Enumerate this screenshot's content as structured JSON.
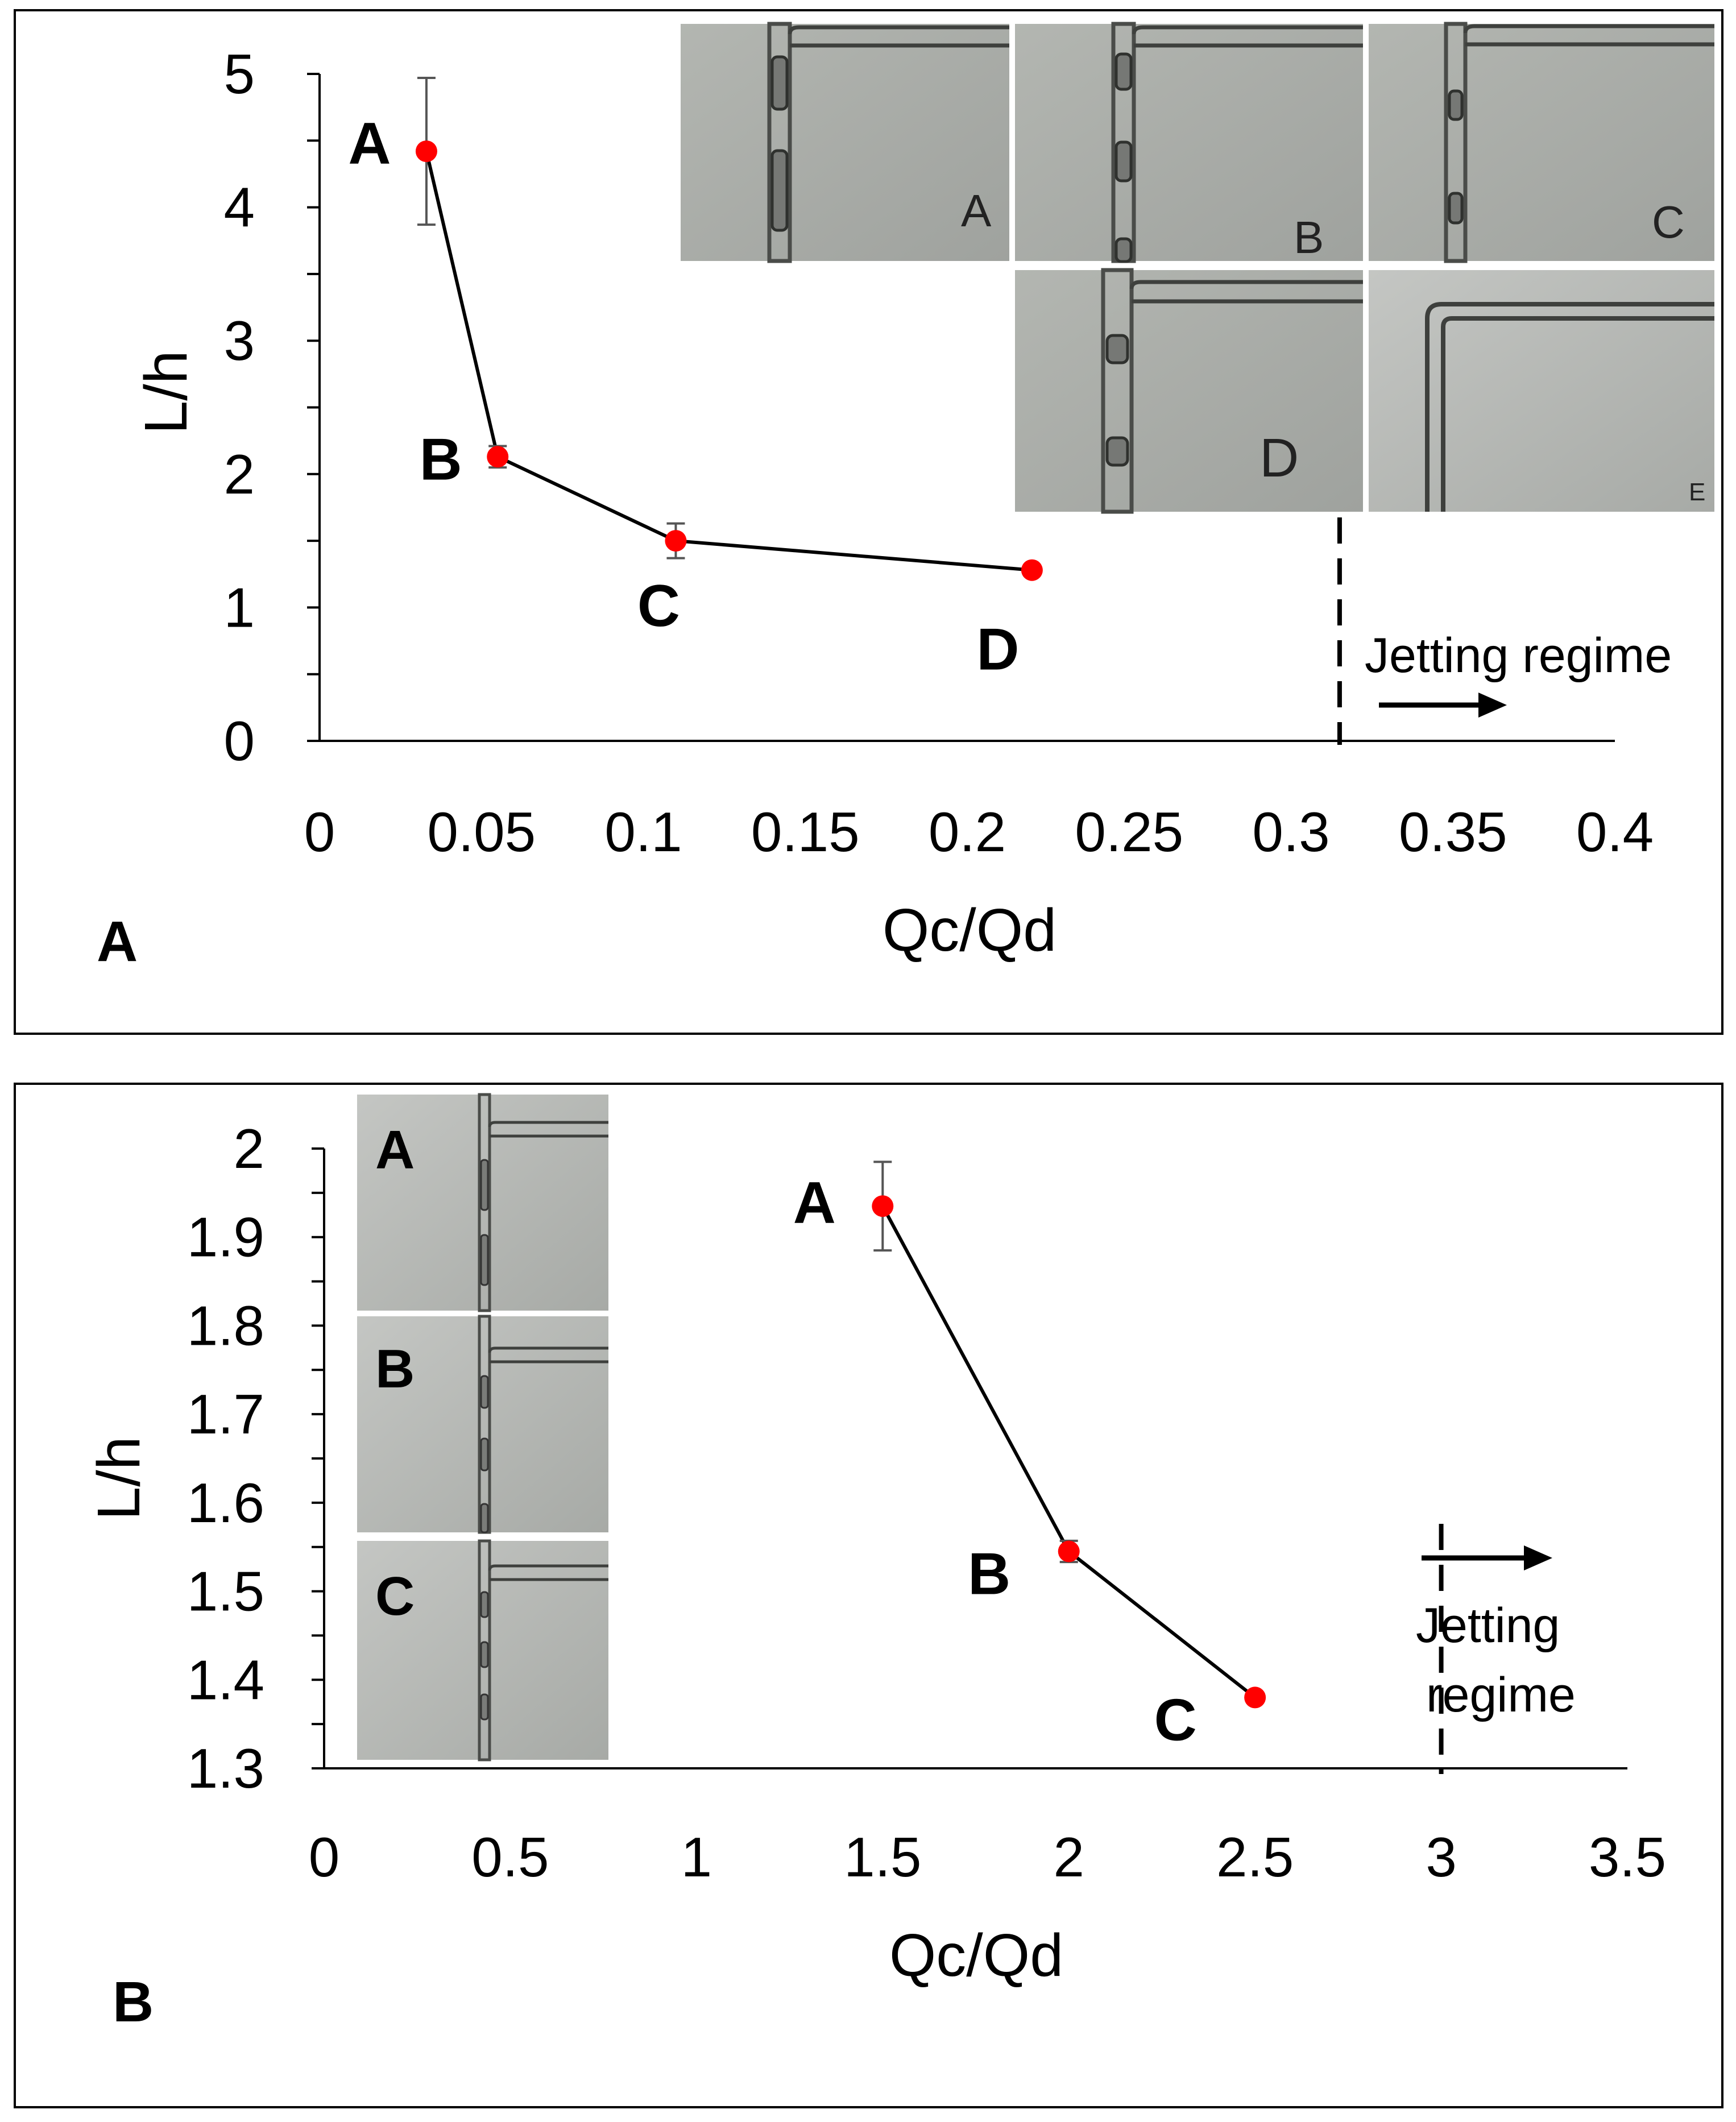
{
  "chart_data": [
    {
      "type": "line",
      "panel_label": "A",
      "xlabel": "Qc/Qd",
      "ylabel": "L/h",
      "xlim": [
        0,
        0.4
      ],
      "ylim": [
        0,
        5
      ],
      "x_ticks": [
        "0",
        "0.05",
        "0.1",
        "0.15",
        "0.2",
        "0.25",
        "0.3",
        "0.35",
        "0.4"
      ],
      "y_ticks": [
        "0",
        "1",
        "2",
        "3",
        "4",
        "5"
      ],
      "series": [
        {
          "name": "L/h",
          "points": [
            {
              "label": "A",
              "x": 0.033,
              "y": 4.42,
              "err": 0.55
            },
            {
              "label": "B",
              "x": 0.055,
              "y": 2.13,
              "err": 0.08
            },
            {
              "label": "C",
              "x": 0.11,
              "y": 1.5,
              "err": 0.13
            },
            {
              "label": "D",
              "x": 0.22,
              "y": 1.28,
              "err": 0
            }
          ]
        }
      ],
      "regime_boundary_x": 0.315,
      "annotation": "Jetting regime",
      "micrographs": [
        "A",
        "B",
        "C",
        "D",
        "E"
      ]
    },
    {
      "type": "line",
      "panel_label": "B",
      "xlabel": "Qc/Qd",
      "ylabel": "L/h",
      "xlim": [
        0,
        3.5
      ],
      "ylim": [
        1.3,
        2.0
      ],
      "x_ticks": [
        "0",
        "0.5",
        "1",
        "1.5",
        "2",
        "2.5",
        "3",
        "3.5"
      ],
      "y_ticks": [
        "1.3",
        "1.4",
        "1.5",
        "1.6",
        "1.7",
        "1.8",
        "1.9",
        "2"
      ],
      "series": [
        {
          "name": "L/h",
          "points": [
            {
              "label": "A",
              "x": 1.5,
              "y": 1.935,
              "err": 0.05
            },
            {
              "label": "B",
              "x": 2.0,
              "y": 1.545,
              "err": 0.012
            },
            {
              "label": "C",
              "x": 2.5,
              "y": 1.38,
              "err": 0
            }
          ]
        }
      ],
      "regime_boundary_x": 3.0,
      "annotation_line1": "Jetting",
      "annotation_line2": "regime",
      "micrographs": [
        "A",
        "B",
        "C"
      ]
    }
  ],
  "colors": {
    "marker": "#ff0000",
    "line": "#000000",
    "error_bar": "#555555",
    "micrograph_bg": "#a9aca8"
  }
}
